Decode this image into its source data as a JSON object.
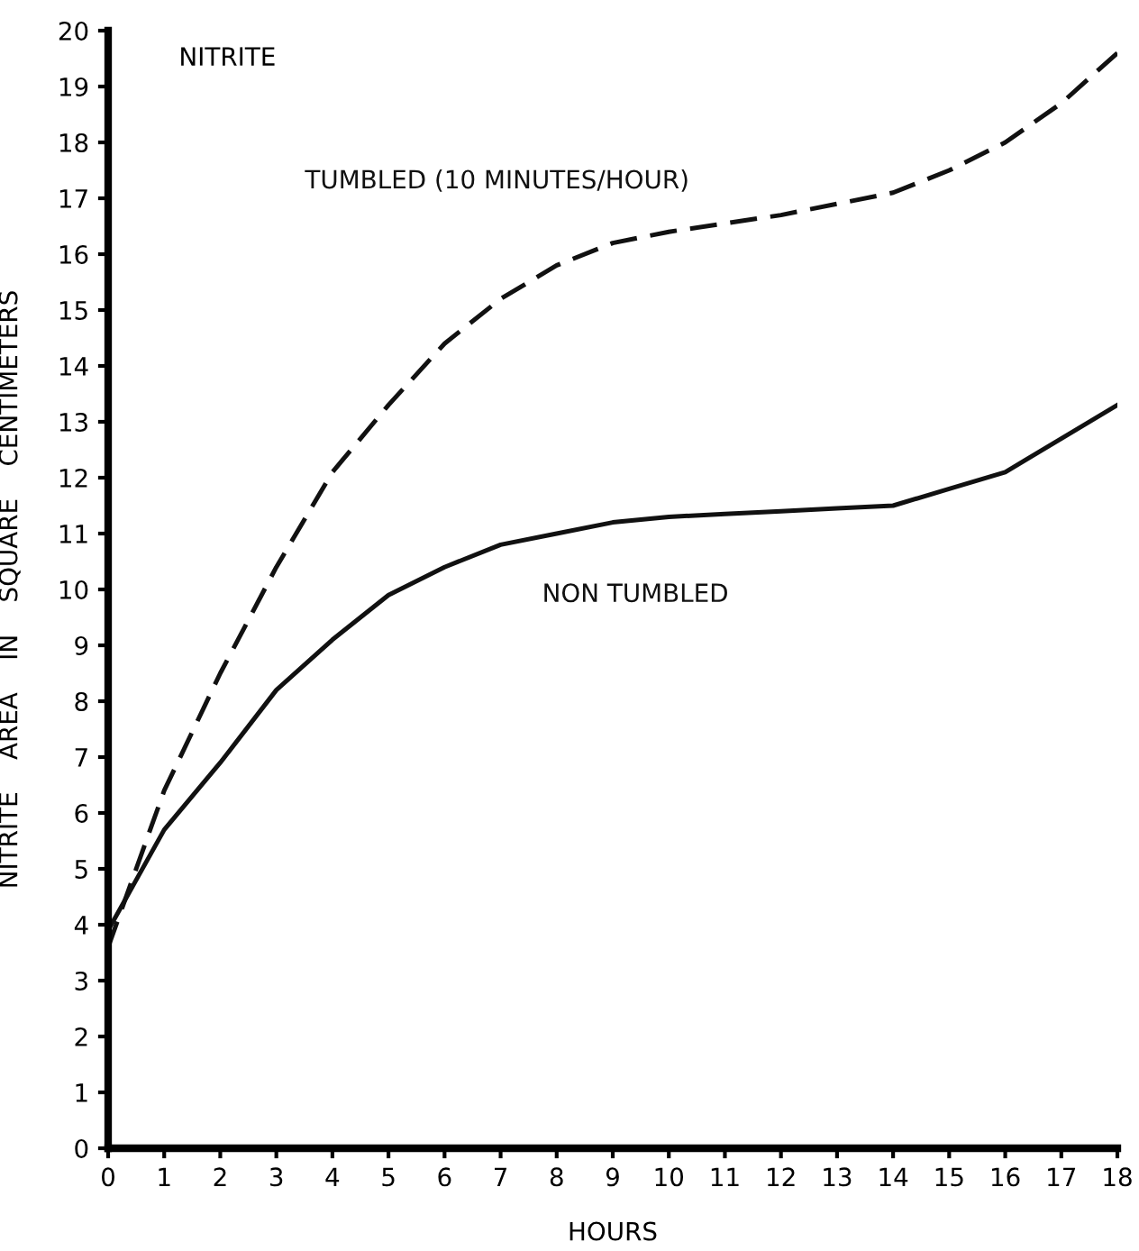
{
  "chart_data": {
    "type": "line",
    "title": "NITRITE",
    "xlabel": "HOURS",
    "ylabel": "NITRITE    AREA    IN    SQUARE    CENTIMETERS",
    "x": [
      0,
      0.5,
      1,
      2,
      3,
      4,
      5,
      6,
      7,
      8,
      9,
      10,
      11,
      12,
      13,
      14,
      15,
      16,
      17,
      18
    ],
    "series": [
      {
        "name": "TUMBLED (10 MINUTES/HOUR)",
        "color": "#111111",
        "line_style": "dashed",
        "values": [
          3.6,
          5.0,
          6.4,
          8.5,
          10.4,
          12.1,
          13.3,
          14.4,
          15.2,
          15.8,
          16.2,
          16.4,
          16.55,
          16.7,
          16.9,
          17.1,
          17.5,
          18.0,
          18.7,
          19.6
        ]
      },
      {
        "name": "NON TUMBLED",
        "color": "#111111",
        "line_style": "solid",
        "values": [
          3.9,
          4.8,
          5.7,
          6.9,
          8.2,
          9.1,
          9.9,
          10.4,
          10.8,
          11.0,
          11.2,
          11.3,
          11.35,
          11.4,
          11.45,
          11.5,
          11.8,
          12.1,
          12.7,
          13.3
        ]
      }
    ],
    "xlim": [
      0,
      18
    ],
    "ylim": [
      0,
      20
    ],
    "xticks": [
      0,
      1,
      2,
      3,
      4,
      5,
      6,
      7,
      8,
      9,
      10,
      11,
      12,
      13,
      14,
      15,
      16,
      17,
      18
    ],
    "yticks": [
      0,
      1,
      2,
      3,
      4,
      5,
      6,
      7,
      8,
      9,
      10,
      11,
      12,
      13,
      14,
      15,
      16,
      17,
      18,
      19,
      20
    ],
    "grid": false,
    "legend": false
  }
}
